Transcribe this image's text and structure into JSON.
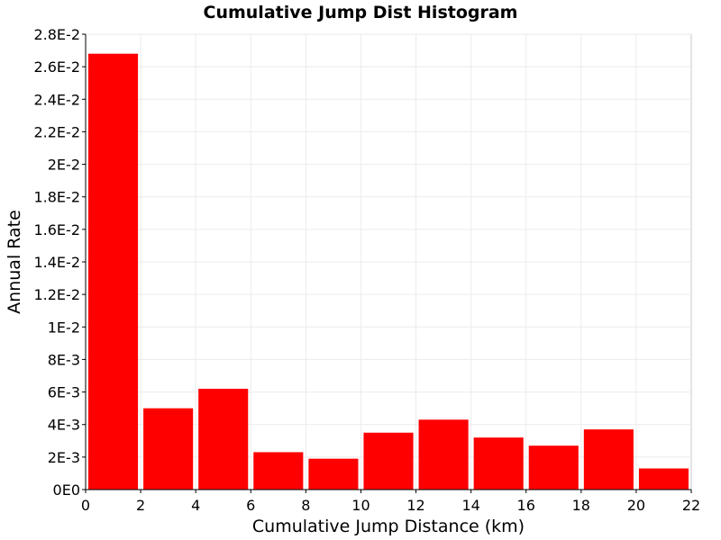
{
  "chart_data": {
    "type": "bar",
    "title": "Cumulative Jump Dist Histogram",
    "xlabel": "Cumulative Jump Distance (km)",
    "ylabel": "Annual Rate",
    "xlim": [
      0,
      22
    ],
    "ylim": [
      0,
      0.028
    ],
    "xticks": [
      0,
      2,
      4,
      6,
      8,
      10,
      12,
      14,
      16,
      18,
      20,
      22
    ],
    "xtick_labels": [
      "0",
      "2",
      "4",
      "6",
      "8",
      "10",
      "12",
      "14",
      "16",
      "18",
      "20",
      "22"
    ],
    "yticks": [
      0,
      0.002,
      0.004,
      0.006,
      0.008,
      0.01,
      0.012,
      0.014,
      0.016,
      0.018,
      0.02,
      0.022,
      0.024,
      0.026,
      0.028
    ],
    "ytick_labels": [
      "0E0",
      "2E-3",
      "4E-3",
      "6E-3",
      "8E-3",
      "1E-2",
      "1.2E-2",
      "1.4E-2",
      "1.6E-2",
      "1.8E-2",
      "2E-2",
      "2.2E-2",
      "2.4E-2",
      "2.6E-2",
      "2.8E-2"
    ],
    "bin_width": 2,
    "bins": [
      {
        "x_start": 0,
        "value": 0.0268
      },
      {
        "x_start": 2,
        "value": 0.005
      },
      {
        "x_start": 4,
        "value": 0.0062
      },
      {
        "x_start": 6,
        "value": 0.0023
      },
      {
        "x_start": 8,
        "value": 0.0019
      },
      {
        "x_start": 10,
        "value": 0.0035
      },
      {
        "x_start": 12,
        "value": 0.0043
      },
      {
        "x_start": 14,
        "value": 0.0032
      },
      {
        "x_start": 16,
        "value": 0.0027
      },
      {
        "x_start": 18,
        "value": 0.0037
      },
      {
        "x_start": 20,
        "value": 0.0013
      }
    ],
    "bar_color": "#ff0000",
    "grid": true
  }
}
